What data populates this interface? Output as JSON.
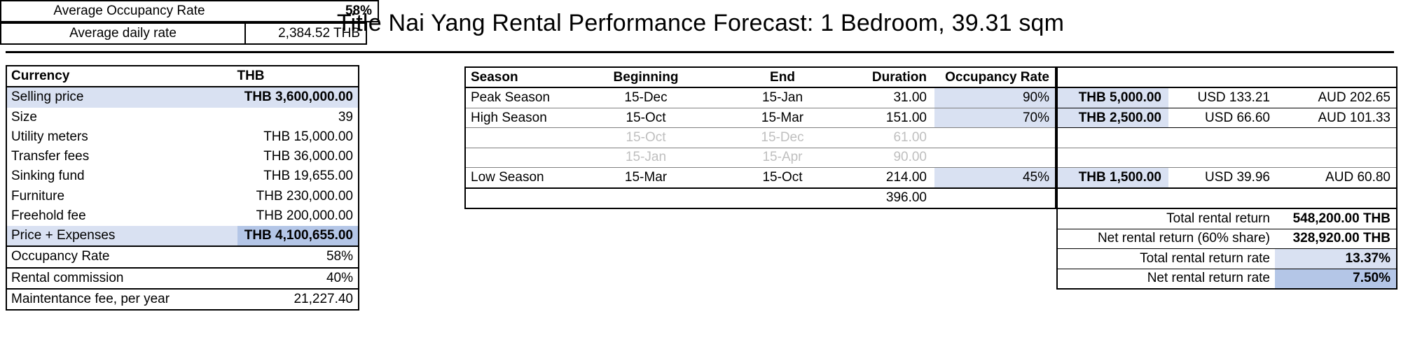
{
  "title": "Title Nai Yang Rental Performance Forecast: 1 Bedroom, 39.31 sqm",
  "colors": {
    "highlight_light": "#D9E1F2",
    "highlight_medium": "#B4C6E7",
    "muted_text": "#BFBFBF"
  },
  "costs": {
    "header": {
      "label": "Currency",
      "value": "THB"
    },
    "rows": [
      {
        "label": "Selling price",
        "value": "THB 3,600,000.00",
        "style": "highlight-full",
        "value_bold": true
      },
      {
        "label": "Size",
        "value": "39",
        "style": "",
        "value_bold": false
      },
      {
        "label": "Utility meters",
        "value": "THB 15,000.00",
        "style": "",
        "value_bold": false
      },
      {
        "label": "Transfer fees",
        "value": "THB 36,000.00",
        "style": "",
        "value_bold": false
      },
      {
        "label": "Sinking fund",
        "value": "THB 19,655.00",
        "style": "",
        "value_bold": false
      },
      {
        "label": "Furniture",
        "value": "THB 230,000.00",
        "style": "",
        "value_bold": false
      },
      {
        "label": "Freehold fee",
        "value": "THB 200,000.00",
        "style": "",
        "value_bold": false
      },
      {
        "label": "Price + Expenses",
        "value": "THB 4,100,655.00",
        "style": "highlight-split",
        "value_bold": true
      },
      {
        "label": "Occupancy Rate",
        "value": "58%",
        "style": "boxed",
        "value_bold": false
      },
      {
        "label": "Rental commission",
        "value": "40%",
        "style": "boxed",
        "value_bold": false
      },
      {
        "label": "Maintentance fee, per year",
        "value": "21,227.40",
        "style": "boxed",
        "value_bold": false
      }
    ]
  },
  "seasons": {
    "headers": {
      "season": "Season",
      "beginning": "Beginning",
      "end": "End",
      "duration": "Duration",
      "occupancy": "Occupancy Rate"
    },
    "rows": [
      {
        "season": "Peak Season",
        "beginning": "15-Dec",
        "end": "15-Jan",
        "duration": "31.00",
        "occupancy": "90%",
        "muted": false,
        "occ_highlight": true
      },
      {
        "season": "High Season",
        "beginning": "15-Oct",
        "end": "15-Mar",
        "duration": "151.00",
        "occupancy": "70%",
        "muted": false,
        "occ_highlight": true
      },
      {
        "season": "",
        "beginning": "15-Oct",
        "end": "15-Dec",
        "duration": "61.00",
        "occupancy": "",
        "muted": true,
        "occ_highlight": false
      },
      {
        "season": "",
        "beginning": "15-Jan",
        "end": "15-Apr",
        "duration": "90.00",
        "occupancy": "",
        "muted": true,
        "occ_highlight": false
      },
      {
        "season": "Low Season",
        "beginning": "15-Mar",
        "end": "15-Oct",
        "duration": "214.00",
        "occupancy": "45%",
        "muted": false,
        "occ_highlight": true
      }
    ],
    "total_duration": "396.00",
    "average": {
      "label": "Average Occupancy Rate",
      "value": "58%"
    }
  },
  "returns": {
    "daily_rates": [
      {
        "thb": "THB 5,000.00",
        "usd": "USD 133.21",
        "aud": "AUD 202.65"
      },
      {
        "thb": "THB 2,500.00",
        "usd": "USD 66.60",
        "aud": "AUD 101.33"
      },
      {
        "thb": "THB 1,500.00",
        "usd": "USD 39.96",
        "aud": "AUD 60.80"
      }
    ],
    "summary": [
      {
        "label": "Total rental return",
        "value": "548,200.00 THB",
        "value_style": "plain"
      },
      {
        "label": "Net rental return (60% share)",
        "value": "328,920.00 THB",
        "value_style": "plain"
      },
      {
        "label": "Total rental return rate",
        "value": "13.37%",
        "value_style": "highlight-light"
      },
      {
        "label": "Net rental return rate",
        "value": "7.50%",
        "value_style": "highlight-medium"
      }
    ]
  },
  "average_daily_rate": {
    "label": "Average daily rate",
    "value": "2,384.52 THB"
  }
}
